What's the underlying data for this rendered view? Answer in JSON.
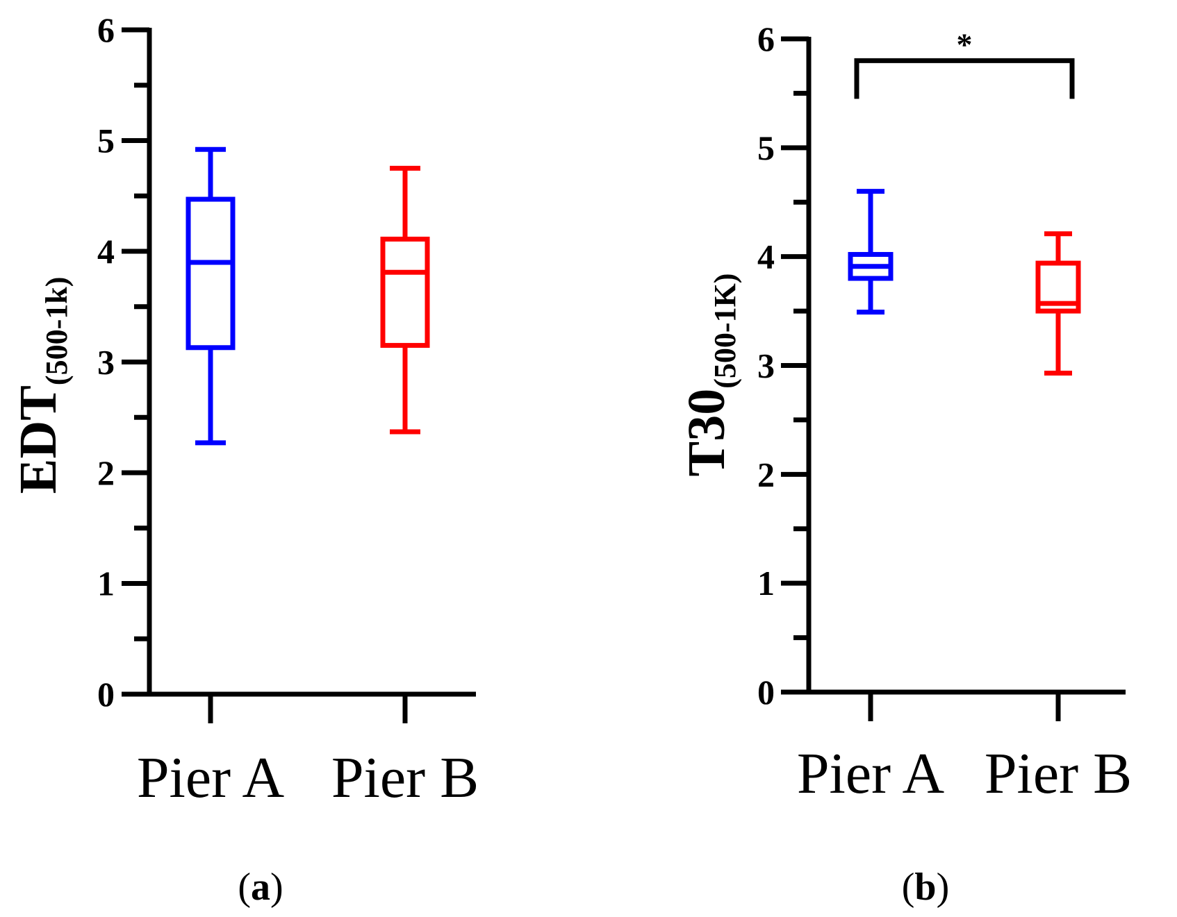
{
  "chart_data": [
    {
      "type": "box",
      "panel_label_open": "(",
      "panel_label_letter": "a",
      "panel_label_close": ")",
      "ylabel_main": "EDT",
      "ylabel_sub": "(500-1k)",
      "ylim": [
        0,
        6
      ],
      "yticks": [
        "0",
        "1",
        "2",
        "3",
        "4",
        "5",
        "6"
      ],
      "categories": [
        "Pier A",
        "Pier B"
      ],
      "boxes": [
        {
          "name": "Pier A",
          "color": "#0000ff",
          "min": 2.27,
          "q1": 3.13,
          "median": 3.9,
          "q3": 4.47,
          "max": 4.92
        },
        {
          "name": "Pier B",
          "color": "#ff0000",
          "min": 2.37,
          "q1": 3.15,
          "median": 3.81,
          "q3": 4.11,
          "max": 4.75
        }
      ],
      "significance": null
    },
    {
      "type": "box",
      "panel_label_open": "(",
      "panel_label_letter": "b",
      "panel_label_close": ")",
      "ylabel_main": "T30",
      "ylabel_sub": "(500-1K)",
      "ylim": [
        0,
        6
      ],
      "yticks": [
        "0",
        "1",
        "2",
        "3",
        "4",
        "5",
        "6"
      ],
      "categories": [
        "Pier A",
        "Pier B"
      ],
      "boxes": [
        {
          "name": "Pier A",
          "color": "#0000ff",
          "min": 3.49,
          "q1": 3.8,
          "median": 3.91,
          "q3": 4.02,
          "max": 4.6
        },
        {
          "name": "Pier B",
          "color": "#ff0000",
          "min": 2.93,
          "q1": 3.5,
          "median": 3.57,
          "q3": 3.94,
          "max": 4.21
        }
      ],
      "significance": {
        "label": "*",
        "from": "Pier A",
        "to": "Pier B",
        "y": 5.8
      }
    }
  ],
  "colors": {
    "axis": "#000000",
    "pier_a": "#0000ff",
    "pier_b": "#ff0000"
  }
}
